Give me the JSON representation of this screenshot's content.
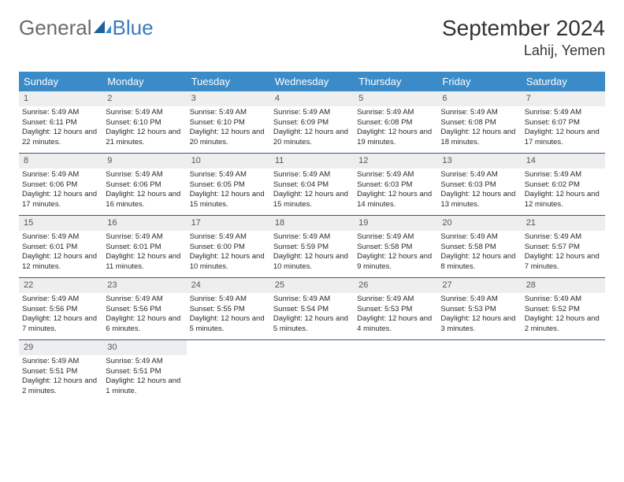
{
  "brand": {
    "part1": "General",
    "part2": "Blue"
  },
  "title": "September 2024",
  "location": "Lahij, Yemen",
  "colors": {
    "header_bg": "#3b8bc9",
    "header_text": "#ffffff",
    "daynum_bg": "#eeeeee",
    "week_divider": "#2e5c8a",
    "text": "#333333"
  },
  "dayNames": [
    "Sunday",
    "Monday",
    "Tuesday",
    "Wednesday",
    "Thursday",
    "Friday",
    "Saturday"
  ],
  "weeks": [
    [
      {
        "n": "1",
        "sr": "5:49 AM",
        "ss": "6:11 PM",
        "dl": "12 hours and 22 minutes."
      },
      {
        "n": "2",
        "sr": "5:49 AM",
        "ss": "6:10 PM",
        "dl": "12 hours and 21 minutes."
      },
      {
        "n": "3",
        "sr": "5:49 AM",
        "ss": "6:10 PM",
        "dl": "12 hours and 20 minutes."
      },
      {
        "n": "4",
        "sr": "5:49 AM",
        "ss": "6:09 PM",
        "dl": "12 hours and 20 minutes."
      },
      {
        "n": "5",
        "sr": "5:49 AM",
        "ss": "6:08 PM",
        "dl": "12 hours and 19 minutes."
      },
      {
        "n": "6",
        "sr": "5:49 AM",
        "ss": "6:08 PM",
        "dl": "12 hours and 18 minutes."
      },
      {
        "n": "7",
        "sr": "5:49 AM",
        "ss": "6:07 PM",
        "dl": "12 hours and 17 minutes."
      }
    ],
    [
      {
        "n": "8",
        "sr": "5:49 AM",
        "ss": "6:06 PM",
        "dl": "12 hours and 17 minutes."
      },
      {
        "n": "9",
        "sr": "5:49 AM",
        "ss": "6:06 PM",
        "dl": "12 hours and 16 minutes."
      },
      {
        "n": "10",
        "sr": "5:49 AM",
        "ss": "6:05 PM",
        "dl": "12 hours and 15 minutes."
      },
      {
        "n": "11",
        "sr": "5:49 AM",
        "ss": "6:04 PM",
        "dl": "12 hours and 15 minutes."
      },
      {
        "n": "12",
        "sr": "5:49 AM",
        "ss": "6:03 PM",
        "dl": "12 hours and 14 minutes."
      },
      {
        "n": "13",
        "sr": "5:49 AM",
        "ss": "6:03 PM",
        "dl": "12 hours and 13 minutes."
      },
      {
        "n": "14",
        "sr": "5:49 AM",
        "ss": "6:02 PM",
        "dl": "12 hours and 12 minutes."
      }
    ],
    [
      {
        "n": "15",
        "sr": "5:49 AM",
        "ss": "6:01 PM",
        "dl": "12 hours and 12 minutes."
      },
      {
        "n": "16",
        "sr": "5:49 AM",
        "ss": "6:01 PM",
        "dl": "12 hours and 11 minutes."
      },
      {
        "n": "17",
        "sr": "5:49 AM",
        "ss": "6:00 PM",
        "dl": "12 hours and 10 minutes."
      },
      {
        "n": "18",
        "sr": "5:49 AM",
        "ss": "5:59 PM",
        "dl": "12 hours and 10 minutes."
      },
      {
        "n": "19",
        "sr": "5:49 AM",
        "ss": "5:58 PM",
        "dl": "12 hours and 9 minutes."
      },
      {
        "n": "20",
        "sr": "5:49 AM",
        "ss": "5:58 PM",
        "dl": "12 hours and 8 minutes."
      },
      {
        "n": "21",
        "sr": "5:49 AM",
        "ss": "5:57 PM",
        "dl": "12 hours and 7 minutes."
      }
    ],
    [
      {
        "n": "22",
        "sr": "5:49 AM",
        "ss": "5:56 PM",
        "dl": "12 hours and 7 minutes."
      },
      {
        "n": "23",
        "sr": "5:49 AM",
        "ss": "5:56 PM",
        "dl": "12 hours and 6 minutes."
      },
      {
        "n": "24",
        "sr": "5:49 AM",
        "ss": "5:55 PM",
        "dl": "12 hours and 5 minutes."
      },
      {
        "n": "25",
        "sr": "5:49 AM",
        "ss": "5:54 PM",
        "dl": "12 hours and 5 minutes."
      },
      {
        "n": "26",
        "sr": "5:49 AM",
        "ss": "5:53 PM",
        "dl": "12 hours and 4 minutes."
      },
      {
        "n": "27",
        "sr": "5:49 AM",
        "ss": "5:53 PM",
        "dl": "12 hours and 3 minutes."
      },
      {
        "n": "28",
        "sr": "5:49 AM",
        "ss": "5:52 PM",
        "dl": "12 hours and 2 minutes."
      }
    ],
    [
      {
        "n": "29",
        "sr": "5:49 AM",
        "ss": "5:51 PM",
        "dl": "12 hours and 2 minutes."
      },
      {
        "n": "30",
        "sr": "5:49 AM",
        "ss": "5:51 PM",
        "dl": "12 hours and 1 minute."
      },
      null,
      null,
      null,
      null,
      null
    ]
  ],
  "labels": {
    "sunrise": "Sunrise: ",
    "sunset": "Sunset: ",
    "daylight": "Daylight: "
  }
}
